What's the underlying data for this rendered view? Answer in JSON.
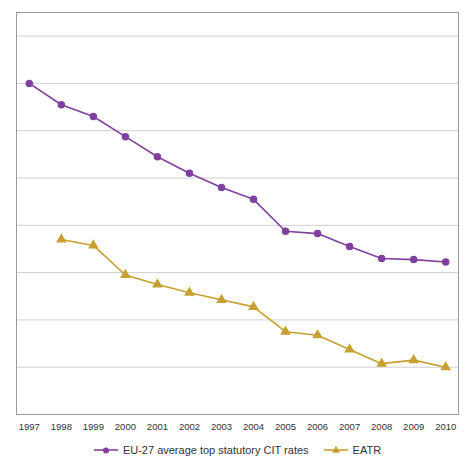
{
  "chart_data": {
    "type": "line",
    "x": [
      1997,
      1998,
      1999,
      2000,
      2001,
      2002,
      2003,
      2004,
      2005,
      2006,
      2007,
      2008,
      2009,
      2010
    ],
    "xlim": [
      1996.6,
      2010.4
    ],
    "xticks": [
      1997,
      1998,
      1999,
      2000,
      2001,
      2002,
      2003,
      2004,
      2005,
      2006,
      2007,
      2008,
      2009,
      2010
    ],
    "ylim": [
      10,
      44
    ],
    "yticks": [
      10,
      14,
      18,
      22,
      26,
      30,
      34,
      38,
      42
    ],
    "grid": true,
    "tick_labels": "x",
    "legend": "bottom",
    "series": [
      {
        "name": "EU-27 average top statutory CIT rates",
        "color": "#8040a0",
        "marker": "circle",
        "values": [
          38.0,
          36.2,
          35.2,
          33.5,
          31.8,
          30.4,
          29.2,
          28.2,
          25.5,
          25.3,
          24.2,
          23.2,
          23.1,
          22.9
        ]
      },
      {
        "name": "EATR",
        "color": "#c8a030",
        "marker": "triangle",
        "values": [
          null,
          24.8,
          24.3,
          21.8,
          21.0,
          20.3,
          19.7,
          19.1,
          17.0,
          16.7,
          15.5,
          14.3,
          14.6,
          14.0
        ]
      }
    ]
  }
}
